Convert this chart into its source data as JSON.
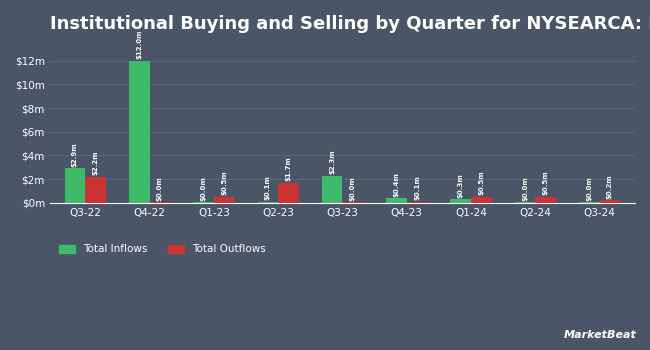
{
  "title": "Institutional Buying and Selling by Quarter for NYSEARCA: FM",
  "quarters": [
    "Q3-22",
    "Q4-22",
    "Q1-23",
    "Q2-23",
    "Q3-23",
    "Q4-23",
    "Q1-24",
    "Q2-24",
    "Q3-24"
  ],
  "inflows": [
    2.9,
    12.0,
    0.05,
    0.1,
    2.3,
    0.4,
    0.3,
    0.05,
    0.05
  ],
  "outflows": [
    2.2,
    0.05,
    0.5,
    1.7,
    0.05,
    0.1,
    0.5,
    0.5,
    0.2
  ],
  "inflow_labels": [
    "$2.9m",
    "$12.0m",
    "$0.0m",
    "$0.1m",
    "$2.3m",
    "$0.4m",
    "$0.3m",
    "$0.0m",
    "$0.0m"
  ],
  "outflow_labels": [
    "$2.2m",
    "$0.0m",
    "$0.5m",
    "$1.7m",
    "$0.0m",
    "$0.1m",
    "$0.5m",
    "$0.5m",
    "$0.2m"
  ],
  "inflow_color": "#3dbb6a",
  "outflow_color": "#cc3333",
  "bg_color": "#4a5568",
  "plot_bg_color": "#4a5568",
  "text_color": "#ffffff",
  "grid_color": "#5d6b80",
  "ylim": [
    0,
    13.5
  ],
  "yticks": [
    0,
    2,
    4,
    6,
    8,
    10,
    12
  ],
  "ytick_labels": [
    "$0m",
    "$2m",
    "$4m",
    "$6m",
    "$8m",
    "$10m",
    "$12m"
  ],
  "bar_width": 0.32,
  "title_fontsize": 13,
  "label_fontsize": 5.0,
  "tick_fontsize": 7.5,
  "legend_fontsize": 7.5
}
